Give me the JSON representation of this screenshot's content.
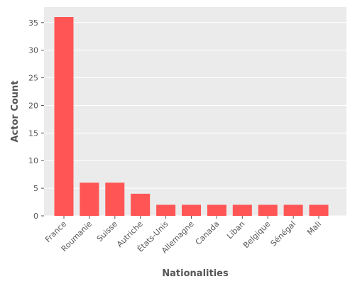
{
  "chart_data": {
    "type": "bar",
    "title": "",
    "xlabel": "Nationalities",
    "ylabel": "Actor Count",
    "categories": [
      "France",
      "Roumanie",
      "Suisse",
      "Autriche",
      "États-Unis",
      "Allemagne",
      "Canada",
      "Liban",
      "Belgique",
      "Sénégal",
      "Mali"
    ],
    "values": [
      36,
      6,
      6,
      4,
      2,
      2,
      2,
      2,
      2,
      2,
      2
    ],
    "ylim": [
      0,
      37.8
    ],
    "yticks": [
      0,
      5,
      10,
      15,
      20,
      25,
      30,
      35
    ],
    "grid": true,
    "legend": "none",
    "colors": {
      "bar": "#ff5555",
      "panel": "#ebebeb",
      "grid": "#ffffff",
      "text": "#555555"
    }
  }
}
